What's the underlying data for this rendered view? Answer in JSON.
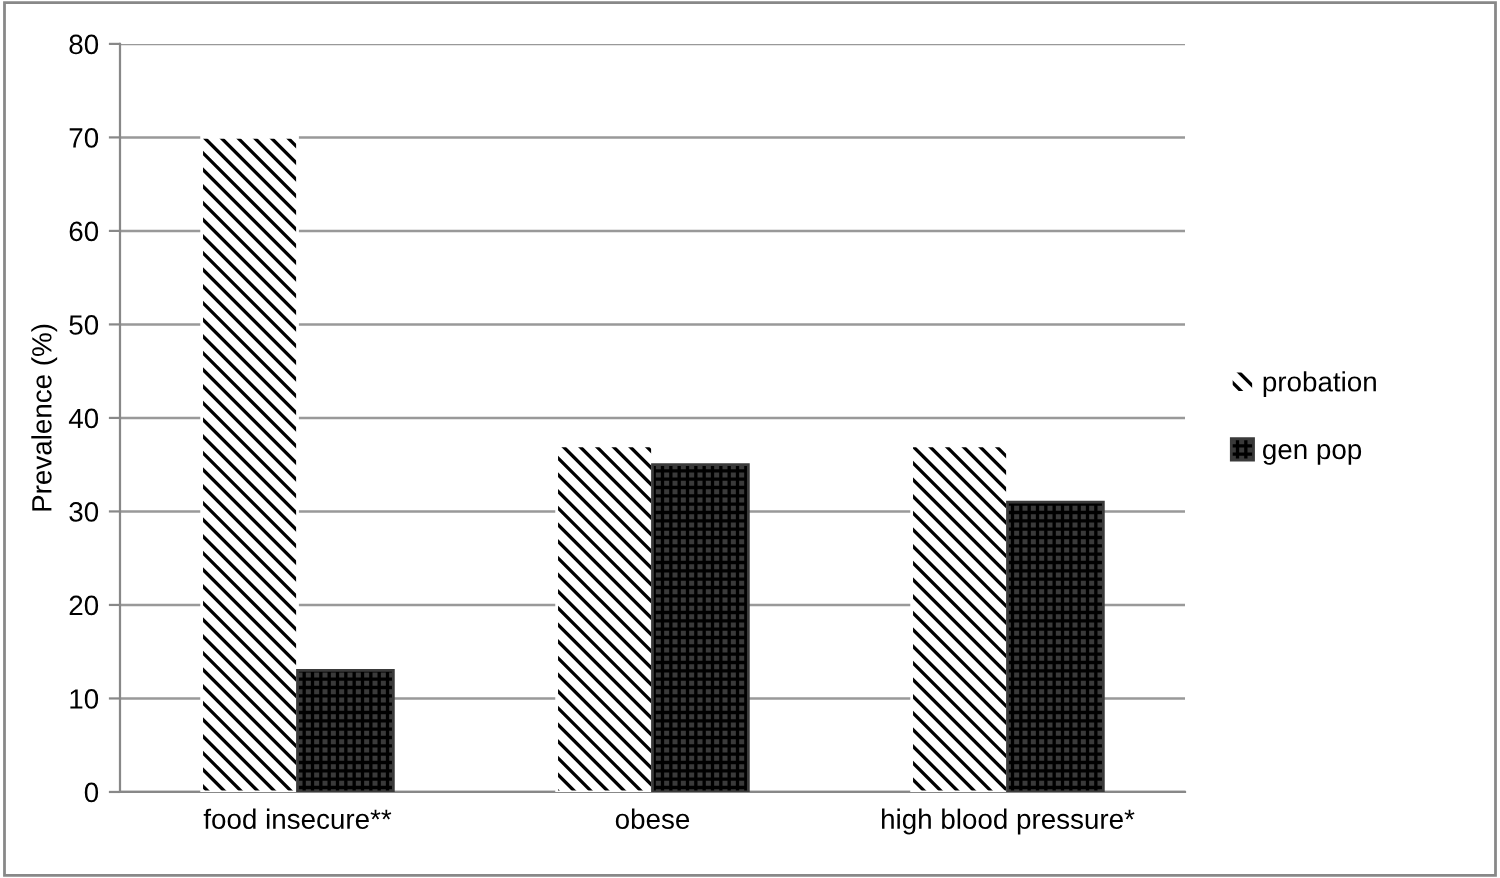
{
  "chart_data": {
    "type": "bar",
    "ylabel": "Prevalence (%)",
    "categories": [
      "food insecure**",
      "obese",
      "high blood pressure*"
    ],
    "series": [
      {
        "name": "probation",
        "color": "#ffffff",
        "values": [
          70,
          37,
          37
        ]
      },
      {
        "name": "gen pop",
        "color": "#3a3a3a",
        "values": [
          13,
          35,
          31
        ]
      }
    ],
    "ylim": [
      0,
      80
    ],
    "yticks": [
      0,
      10,
      20,
      30,
      40,
      50,
      60,
      70,
      80
    ],
    "grid": "y",
    "legend": "right"
  }
}
